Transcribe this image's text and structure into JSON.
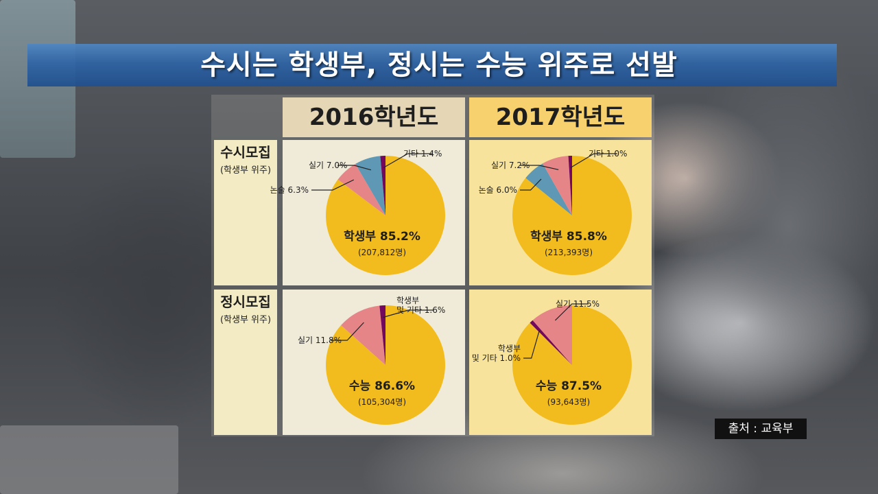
{
  "title": "수시는 학생부, 정시는 수능 위주로 선발",
  "columns": [
    "2016학년도",
    "2017학년도"
  ],
  "rows": [
    {
      "label": "수시모집",
      "sublabel": "(학생부 위주)"
    },
    {
      "label": "정시모집",
      "sublabel": "(학생부 위주)"
    }
  ],
  "source": "출처 : 교육부",
  "colors": {
    "main": "#f2bc1e",
    "blue": "#5e98b4",
    "pink": "#e68588",
    "purple": "#72095e",
    "col2016": "#e5d6b5",
    "col2017": "#f6d16e",
    "cell2016": "#f0ebd9",
    "cell2017": "#f8e39c"
  },
  "chart_data": [
    {
      "type": "pie",
      "column": "2016학년도",
      "row": "수시모집",
      "slices": [
        {
          "label": "학생부",
          "value": 85.2,
          "count": "(207,812명)",
          "text": "학생부 85.2%",
          "color": "main"
        },
        {
          "label": "논술",
          "value": 6.3,
          "text": "논술 6.3%",
          "color": "pink"
        },
        {
          "label": "실기",
          "value": 7.0,
          "text": "실기 7.0%",
          "color": "blue"
        },
        {
          "label": "기타",
          "value": 1.4,
          "text": "기타 1.4%",
          "color": "purple"
        }
      ]
    },
    {
      "type": "pie",
      "column": "2017학년도",
      "row": "수시모집",
      "slices": [
        {
          "label": "학생부",
          "value": 85.8,
          "count": "(213,393명)",
          "text": "학생부 85.8%",
          "color": "main"
        },
        {
          "label": "논술",
          "value": 6.0,
          "text": "논술 6.0%",
          "color": "blue"
        },
        {
          "label": "실기",
          "value": 7.2,
          "text": "실기 7.2%",
          "color": "pink"
        },
        {
          "label": "기타",
          "value": 1.0,
          "text": "기타 1.0%",
          "color": "purple"
        }
      ]
    },
    {
      "type": "pie",
      "column": "2016학년도",
      "row": "정시모집",
      "slices": [
        {
          "label": "수능",
          "value": 86.6,
          "count": "(105,304명)",
          "text": "수능 86.6%",
          "color": "main"
        },
        {
          "label": "실기",
          "value": 11.8,
          "text": "실기 11.8%",
          "color": "pink"
        },
        {
          "label": "학생부 및 기타",
          "value": 1.6,
          "text": "학생부|및 기타 1.6%",
          "color": "purple"
        }
      ]
    },
    {
      "type": "pie",
      "column": "2017학년도",
      "row": "정시모집",
      "slices": [
        {
          "label": "수능",
          "value": 87.5,
          "count": "(93,643명)",
          "text": "수능 87.5%",
          "color": "main"
        },
        {
          "label": "학생부 및 기타",
          "value": 1.0,
          "text": "학생부|및 기타 1.0%",
          "color": "purple"
        },
        {
          "label": "실기",
          "value": 11.5,
          "text": "실기 11.5%",
          "color": "pink"
        }
      ]
    }
  ]
}
